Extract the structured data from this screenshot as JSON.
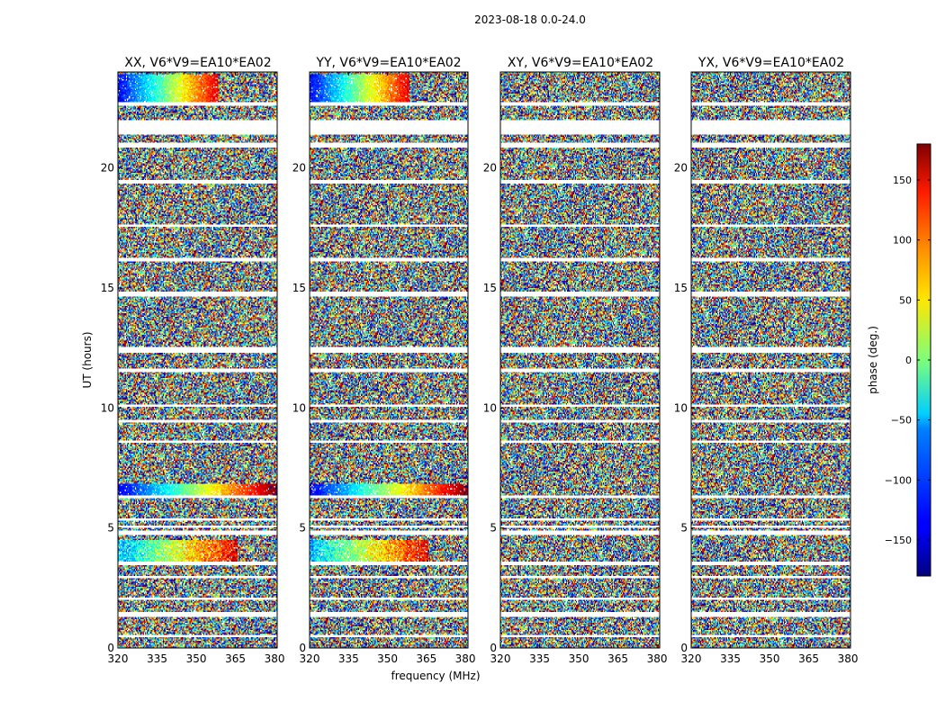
{
  "figure": {
    "suptitle": "2023-08-18 0.0-24.0"
  },
  "chart_data": {
    "type": "heatmap",
    "xlabel": "frequency (MHz)",
    "ylabel": "UT (hours)",
    "xlim": [
      320,
      381
    ],
    "ylim": [
      0,
      24
    ],
    "xticks": [
      320,
      335,
      350,
      365,
      380
    ],
    "yticks": [
      0,
      5,
      10,
      15,
      20
    ],
    "panels": [
      {
        "name": "XX",
        "title": "XX, V6*V9=EA10*EA02",
        "coherent": true
      },
      {
        "name": "YY",
        "title": "YY, V6*V9=EA10*EA02",
        "coherent": true
      },
      {
        "name": "XY",
        "title": "XY, V6*V9=EA10*EA02",
        "coherent": false
      },
      {
        "name": "YX",
        "title": "YX, V6*V9=EA10*EA02",
        "coherent": false
      }
    ],
    "flagged_ut_ranges": [
      [
        0.45,
        0.52
      ],
      [
        1.3,
        1.48
      ],
      [
        2.02,
        2.1
      ],
      [
        2.92,
        3.0
      ],
      [
        3.48,
        3.58
      ],
      [
        4.7,
        4.9
      ],
      [
        5.0,
        5.08
      ],
      [
        5.3,
        5.36
      ],
      [
        6.25,
        6.32
      ],
      [
        8.55,
        8.62
      ],
      [
        9.42,
        9.5
      ],
      [
        10.05,
        10.12
      ],
      [
        11.55,
        11.6
      ],
      [
        12.35,
        12.5
      ],
      [
        14.7,
        14.85
      ],
      [
        16.15,
        16.22
      ],
      [
        17.55,
        17.62
      ],
      [
        19.4,
        19.5
      ],
      [
        20.9,
        21.05
      ],
      [
        21.45,
        21.98
      ],
      [
        22.65,
        22.75
      ]
    ],
    "colorbar": {
      "label": "phase (deg.)",
      "ticks": [
        -150,
        -100,
        -50,
        0,
        50,
        100,
        150
      ],
      "tick_labels": [
        "−150",
        "−100",
        "−50",
        "0",
        "50",
        "100",
        "150"
      ],
      "range": [
        -180,
        180
      ],
      "colormap": "jet"
    }
  }
}
